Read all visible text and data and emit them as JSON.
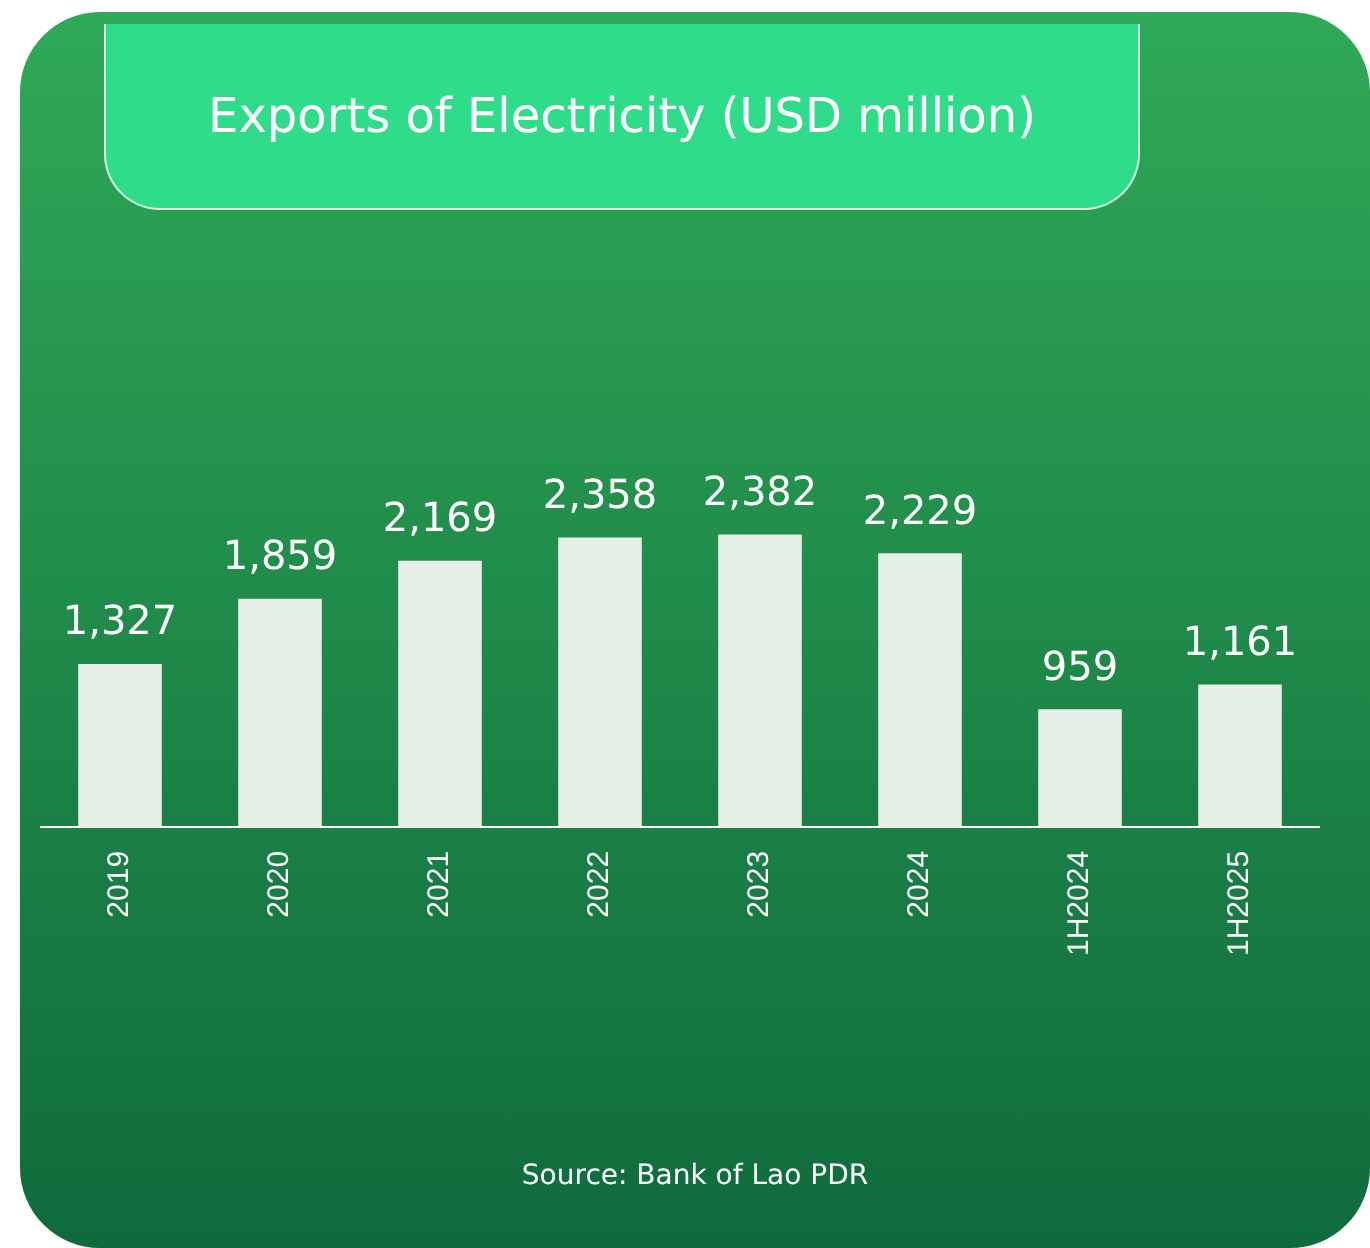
{
  "chart_data": {
    "type": "bar",
    "title": "Exports of Electricity (USD million)",
    "categories": [
      "2019",
      "2020",
      "2021",
      "2022",
      "2023",
      "2024",
      "1H2024",
      "1H2025"
    ],
    "values": [
      1327,
      1859,
      2169,
      2358,
      2382,
      2229,
      959,
      1161
    ],
    "value_labels": [
      "1,327",
      "1,859",
      "2,169",
      "2,358",
      "2,382",
      "2,229",
      "959",
      "1,161"
    ],
    "color": "#e6eee8",
    "grid": false,
    "legend": false,
    "annotations": [
      "Source: Bank of Lao PDR"
    ]
  }
}
